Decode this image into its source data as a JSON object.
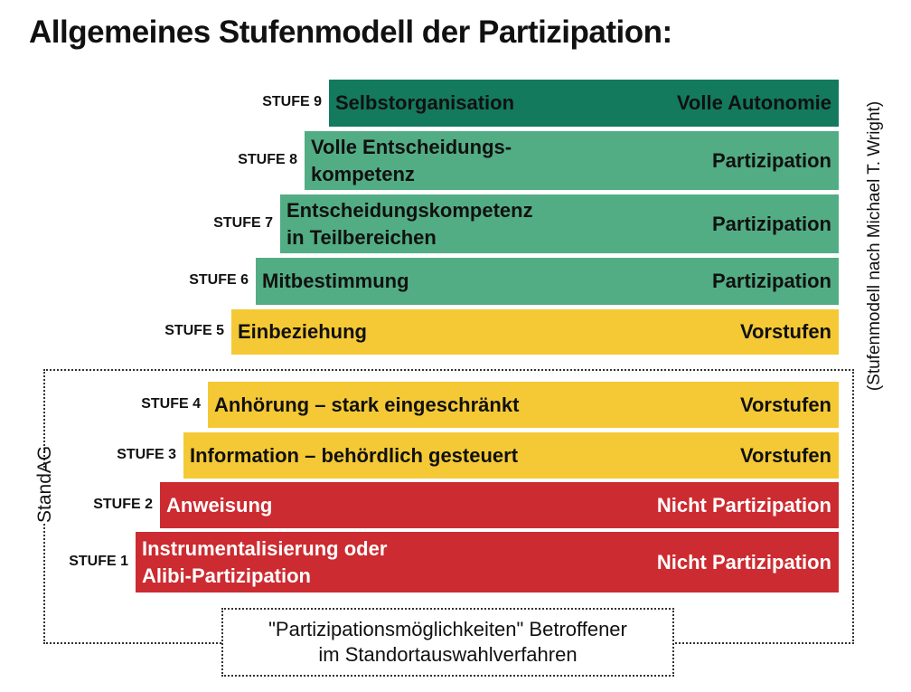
{
  "title": "Allgemeines Stufenmodell der Partizipation:",
  "side_note": "(Stufenmodell nach Michael T. Wright)",
  "group_label": "StandAG",
  "note": "\"Partizipationsmöglichkeiten\" Betroffener\nim Standortauswahlverfahren",
  "colors": {
    "dark_green": "#137a5d",
    "green": "#52ad84",
    "yellow": "#f4c935",
    "red": "#cc2b31"
  },
  "levels": [
    {
      "stufe": "STUFE 9",
      "label": "Selbstorganisation",
      "category": "Volle Autonomie",
      "color": "dark_green"
    },
    {
      "stufe": "STUFE 8",
      "label": "Volle Entscheidungs-\nkompetenz",
      "category": "Partizipation",
      "color": "green"
    },
    {
      "stufe": "STUFE 7",
      "label": "Entscheidungskompetenz\nin Teilbereichen",
      "category": "Partizipation",
      "color": "green"
    },
    {
      "stufe": "STUFE 6",
      "label": "Mitbestimmung",
      "category": "Partizipation",
      "color": "green"
    },
    {
      "stufe": "STUFE 5",
      "label": "Einbeziehung",
      "category": "Vorstufen",
      "color": "yellow"
    },
    {
      "stufe": "STUFE 4",
      "label": "Anhörung – stark eingeschränkt",
      "category": "Vorstufen",
      "color": "yellow"
    },
    {
      "stufe": "STUFE 3",
      "label": "Information – behördlich gesteuert",
      "category": "Vorstufen",
      "color": "yellow"
    },
    {
      "stufe": "STUFE 2",
      "label": "Anweisung",
      "category": "Nicht Partizipation",
      "color": "red"
    },
    {
      "stufe": "STUFE 1",
      "label": "Instrumentalisierung oder\nAlibi-Partizipation",
      "category": "Nicht Partizipation",
      "color": "red"
    }
  ]
}
